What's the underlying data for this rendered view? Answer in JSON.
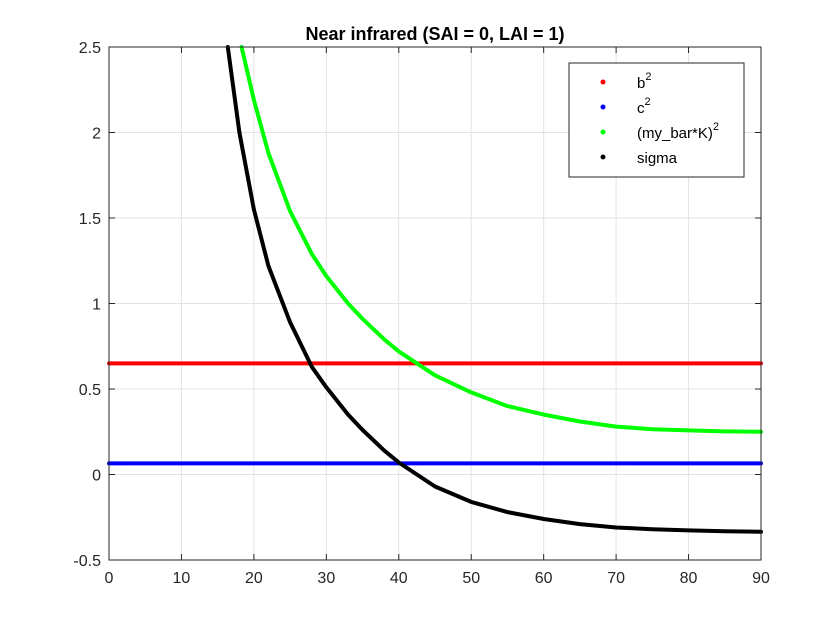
{
  "chart_data": {
    "type": "line",
    "title": "Near infrared (SAI = 0, LAI = 1)",
    "xlabel": "",
    "ylabel": "",
    "xlim": [
      0,
      90
    ],
    "ylim": [
      -0.5,
      2.5
    ],
    "grid": true,
    "x_ticks": [
      "0",
      "10",
      "20",
      "30",
      "40",
      "50",
      "60",
      "70",
      "80",
      "90"
    ],
    "y_ticks": [
      "-0.5",
      "0",
      "0.5",
      "1",
      "1.5",
      "2",
      "2.5"
    ],
    "legend": {
      "placement": "top-right",
      "entries": [
        {
          "base": "b",
          "sup": "2",
          "color": "#ff0000"
        },
        {
          "base": "c",
          "sup": "2",
          "color": "#0000ff"
        },
        {
          "base": "(my_bar*K)",
          "sup": "2",
          "color": "#00ff00"
        },
        {
          "base": "sigma",
          "sup": "",
          "color": "#000000"
        }
      ]
    },
    "series": [
      {
        "name": "b^2",
        "color": "#ff0000",
        "x": [
          0,
          10,
          20,
          30,
          40,
          50,
          60,
          70,
          80,
          90
        ],
        "y": [
          0.65,
          0.65,
          0.65,
          0.65,
          0.65,
          0.65,
          0.65,
          0.65,
          0.65,
          0.65
        ]
      },
      {
        "name": "c^2",
        "color": "#0000ff",
        "x": [
          0,
          10,
          20,
          30,
          40,
          50,
          60,
          70,
          80,
          90
        ],
        "y": [
          0.065,
          0.065,
          0.065,
          0.065,
          0.065,
          0.065,
          0.065,
          0.065,
          0.065,
          0.065
        ]
      },
      {
        "name": "(my_bar*K)^2",
        "color": "#00ff00",
        "x": [
          18.3,
          20,
          22,
          25,
          28,
          30,
          33,
          35,
          38,
          40,
          45,
          50,
          55,
          60,
          65,
          70,
          75,
          80,
          85,
          90
        ],
        "y": [
          2.5,
          2.19,
          1.88,
          1.54,
          1.29,
          1.16,
          1.0,
          0.91,
          0.79,
          0.72,
          0.58,
          0.48,
          0.4,
          0.35,
          0.31,
          0.28,
          0.265,
          0.258,
          0.252,
          0.25
        ]
      },
      {
        "name": "sigma",
        "color": "#000000",
        "x": [
          16.4,
          18,
          20,
          22,
          25,
          28,
          30,
          33,
          35,
          38,
          40,
          45,
          50,
          55,
          60,
          65,
          70,
          75,
          80,
          85,
          90
        ],
        "y": [
          2.5,
          2.0,
          1.55,
          1.22,
          0.89,
          0.63,
          0.51,
          0.35,
          0.26,
          0.14,
          0.07,
          -0.07,
          -0.16,
          -0.22,
          -0.26,
          -0.29,
          -0.31,
          -0.32,
          -0.327,
          -0.332,
          -0.335
        ]
      }
    ]
  }
}
